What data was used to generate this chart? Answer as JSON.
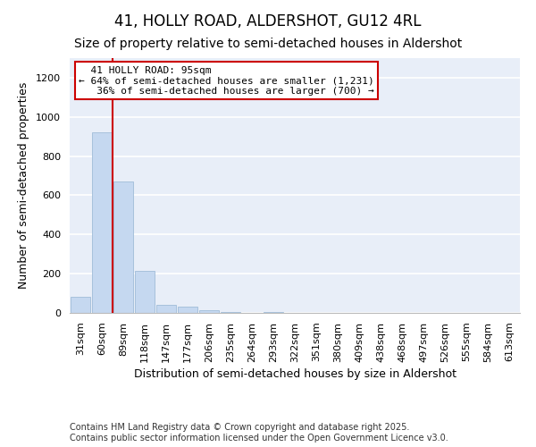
{
  "title_line1": "41, HOLLY ROAD, ALDERSHOT, GU12 4RL",
  "title_line2": "Size of property relative to semi-detached houses in Aldershot",
  "xlabel": "Distribution of semi-detached houses by size in Aldershot",
  "ylabel": "Number of semi-detached properties",
  "categories": [
    "31sqm",
    "60sqm",
    "89sqm",
    "118sqm",
    "147sqm",
    "177sqm",
    "206sqm",
    "235sqm",
    "264sqm",
    "293sqm",
    "322sqm",
    "351sqm",
    "380sqm",
    "409sqm",
    "438sqm",
    "468sqm",
    "497sqm",
    "526sqm",
    "555sqm",
    "584sqm",
    "613sqm"
  ],
  "values": [
    80,
    920,
    670,
    215,
    40,
    30,
    15,
    5,
    0,
    5,
    0,
    0,
    0,
    0,
    0,
    0,
    0,
    0,
    0,
    0,
    0
  ],
  "bar_color": "#c5d8f0",
  "bar_edgecolor": "#a0bcd8",
  "background_color": "#e8eef8",
  "grid_color": "#ffffff",
  "vline_x": 1.5,
  "vline_color": "#cc0000",
  "annotation_line1": "  41 HOLLY ROAD: 95sqm",
  "annotation_line2": "← 64% of semi-detached houses are smaller (1,231)",
  "annotation_line3": "   36% of semi-detached houses are larger (700) →",
  "annotation_box_color": "#ffffff",
  "annotation_box_edgecolor": "#cc0000",
  "ylim": [
    0,
    1300
  ],
  "yticks": [
    0,
    200,
    400,
    600,
    800,
    1000,
    1200
  ],
  "footer_text": "Contains HM Land Registry data © Crown copyright and database right 2025.\nContains public sector information licensed under the Open Government Licence v3.0.",
  "title_fontsize": 12,
  "subtitle_fontsize": 10,
  "tick_fontsize": 8,
  "label_fontsize": 9,
  "footer_fontsize": 7
}
